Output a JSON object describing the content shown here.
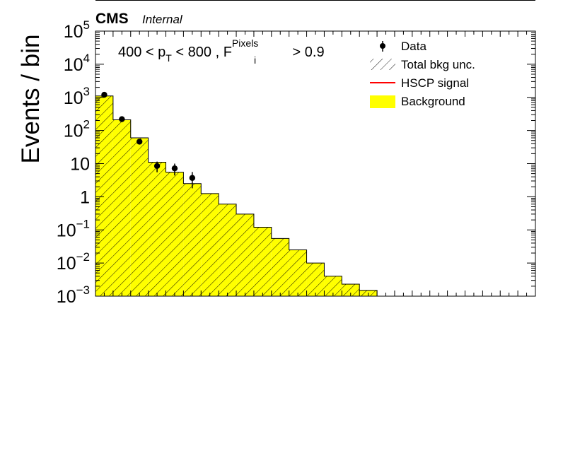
{
  "header": {
    "experiment": "CMS",
    "status": "Internal"
  },
  "annotation": {
    "prefix": "400 < p",
    "pt_sub": "T",
    "middle": " < 800 , F",
    "f_sup": "Pixels",
    "f_sub": "i",
    "suffix": " > 0.9"
  },
  "legend": {
    "placement": "top-right",
    "items": [
      {
        "label": "Data",
        "kind": "marker"
      },
      {
        "label": "Total bkg unc.",
        "kind": "hatch"
      },
      {
        "label": "HSCP signal",
        "kind": "line",
        "color": "#ff0000"
      },
      {
        "label": "Background",
        "kind": "fill",
        "color": "#ffff00"
      }
    ]
  },
  "chart_data": {
    "type": "bar",
    "ylabel": "Events / bin",
    "xlabel": "",
    "yscale": "log",
    "ylim": [
      0.001,
      100000
    ],
    "y_tick_labels": [
      {
        "value": 100000,
        "base": "10",
        "exp": "5"
      },
      {
        "value": 10000,
        "base": "10",
        "exp": "4"
      },
      {
        "value": 1000,
        "base": "10",
        "exp": "3"
      },
      {
        "value": 100,
        "base": "10",
        "exp": "2"
      },
      {
        "value": 10,
        "base": "10",
        "exp": ""
      },
      {
        "value": 1,
        "base": "1",
        "exp": ""
      },
      {
        "value": 0.1,
        "base": "10",
        "exp": "−1"
      },
      {
        "value": 0.01,
        "base": "10",
        "exp": "−2"
      },
      {
        "value": 0.001,
        "base": "10",
        "exp": "−3"
      }
    ],
    "n_bins": 25,
    "background": [
      1100,
      210,
      60,
      11,
      5.5,
      2.5,
      1.25,
      0.6,
      0.3,
      0.12,
      0.055,
      0.025,
      0.01,
      0.004,
      0.0023,
      0.0015,
      0,
      0,
      0,
      0,
      0,
      0,
      0,
      0,
      0
    ],
    "data": [
      {
        "bin": 0,
        "value": 1200,
        "err": 60
      },
      {
        "bin": 1,
        "value": 220,
        "err": 25
      },
      {
        "bin": 2,
        "value": 46,
        "err": 8
      },
      {
        "bin": 3,
        "value": 8.5,
        "err": 3
      },
      {
        "bin": 4,
        "value": 7.2,
        "err": 2.8
      },
      {
        "bin": 5,
        "value": 3.7,
        "err": 1.9
      }
    ],
    "colors": {
      "background": "#ffff00",
      "hatch": "#000000",
      "data": "#000000",
      "signal": "#ff0000"
    }
  }
}
